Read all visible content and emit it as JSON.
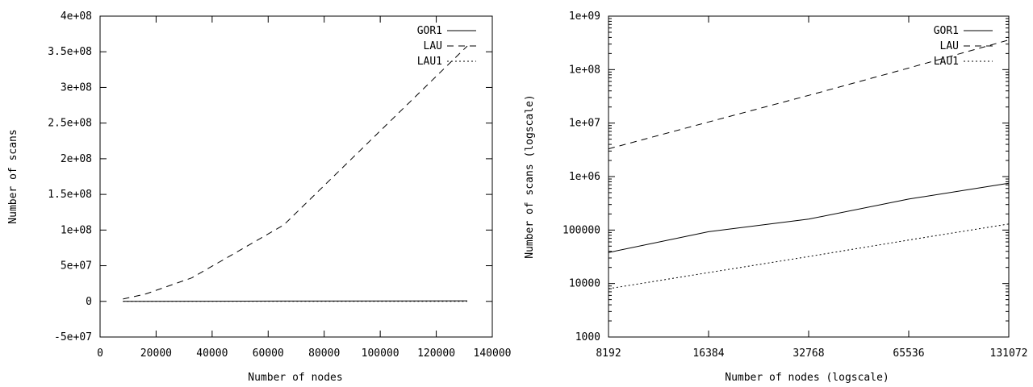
{
  "chart_data": [
    {
      "type": "line",
      "xlabel": "Number of nodes",
      "ylabel": "Number of scans",
      "xlim": [
        0,
        140000
      ],
      "ylim": [
        -50000000,
        400000000
      ],
      "xticks": [
        0,
        20000,
        40000,
        60000,
        80000,
        100000,
        120000,
        140000
      ],
      "xtick_labels": [
        "0",
        "20000",
        "40000",
        "60000",
        "80000",
        "100000",
        "120000",
        "140000"
      ],
      "yticks": [
        -50000000,
        0,
        50000000,
        100000000,
        150000000,
        200000000,
        250000000,
        300000000,
        350000000,
        400000000
      ],
      "ytick_labels": [
        "-5e+07",
        "0",
        "5e+07",
        "1e+08",
        "1.5e+08",
        "2e+08",
        "2.5e+08",
        "3e+08",
        "3.5e+08",
        "4e+08"
      ],
      "legend": "top-right",
      "series": [
        {
          "name": "GOR1",
          "style": "solid",
          "x": [
            8192,
            16384,
            32768,
            65536,
            131072
          ],
          "y": [
            38000,
            93000,
            160000,
            380000,
            750000
          ]
        },
        {
          "name": "LAU",
          "style": "dashed",
          "x": [
            8192,
            16384,
            32768,
            65536,
            131072
          ],
          "y": [
            3300000,
            10500000,
            33000000,
            107000000,
            358000000
          ]
        },
        {
          "name": "LAU1",
          "style": "dotted",
          "x": [
            8192,
            16384,
            32768,
            65536,
            131072
          ],
          "y": [
            8000,
            16000,
            32000,
            65000,
            130000
          ]
        }
      ]
    },
    {
      "type": "line",
      "xlabel": "Number of nodes (logscale)",
      "ylabel": "Number of scans (logscale)",
      "xscale": "log",
      "yscale": "log",
      "xlim": [
        8192,
        131072
      ],
      "ylim": [
        1000,
        1000000000
      ],
      "xticks": [
        8192,
        16384,
        32768,
        65536,
        131072
      ],
      "xtick_labels": [
        "8192",
        "16384",
        "32768",
        "65536",
        "131072"
      ],
      "yticks": [
        1000,
        10000,
        100000,
        1000000,
        10000000,
        100000000,
        1000000000
      ],
      "ytick_labels": [
        "1000",
        "10000",
        "100000",
        "1e+06",
        "1e+07",
        "1e+08",
        "1e+09"
      ],
      "legend": "top-right",
      "series": [
        {
          "name": "GOR1",
          "style": "solid",
          "x": [
            8192,
            16384,
            32768,
            65536,
            131072
          ],
          "y": [
            38000,
            93000,
            160000,
            380000,
            750000
          ]
        },
        {
          "name": "LAU",
          "style": "dashed",
          "x": [
            8192,
            16384,
            32768,
            65536,
            131072
          ],
          "y": [
            3300000,
            10500000,
            33000000,
            107000000,
            358000000
          ]
        },
        {
          "name": "LAU1",
          "style": "dotted",
          "x": [
            8192,
            16384,
            32768,
            65536,
            131072
          ],
          "y": [
            8000,
            16000,
            32000,
            65000,
            130000
          ]
        }
      ]
    }
  ]
}
